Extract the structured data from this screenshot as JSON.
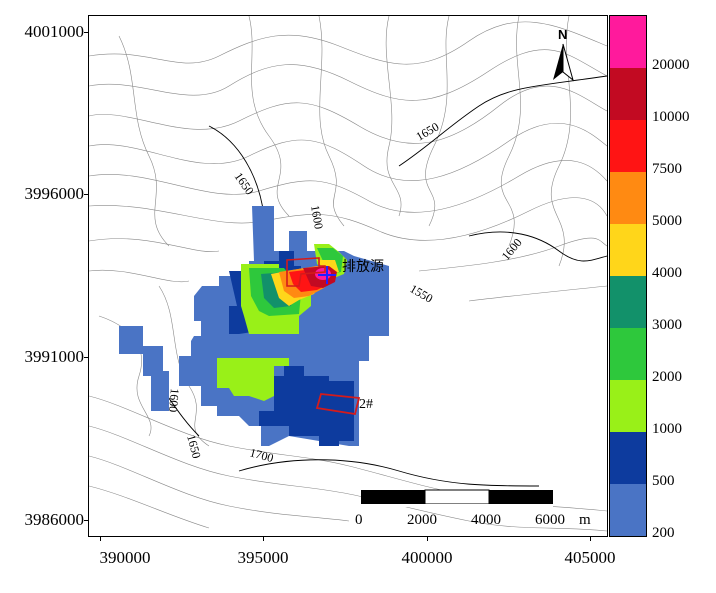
{
  "axes": {
    "y_ticks": [
      "4001000",
      "3996000",
      "3991000",
      "3986000"
    ],
    "x_ticks": [
      "390000",
      "395000",
      "400000",
      "405000"
    ]
  },
  "legend": {
    "levels": [
      {
        "label": "200",
        "color": "#4a74c5"
      },
      {
        "label": "500",
        "color": "#0d3b9e"
      },
      {
        "label": "1000",
        "color": "#99f018"
      },
      {
        "label": "2000",
        "color": "#2ec83c"
      },
      {
        "label": "3000",
        "color": "#12916a"
      },
      {
        "label": "4000",
        "color": "#ffd61a"
      },
      {
        "label": "5000",
        "color": "#ff8a12"
      },
      {
        "label": "7500",
        "color": "#ff1414"
      },
      {
        "label": "10000",
        "color": "#c20a22"
      },
      {
        "label": "20000",
        "color": "#ff1a9c"
      }
    ]
  },
  "contour_labels": {
    "c1650_nw": "1650",
    "c1650_ne": "1650",
    "c1600_top": "1600",
    "c1600_e": "1600",
    "c1550": "1550",
    "c1600_sw": "1600",
    "c1650_sw": "1650",
    "c1700": "1700"
  },
  "source": {
    "label": "排放源",
    "area_marker": "2#"
  },
  "north_arrow": {
    "label": "N"
  },
  "scale_bar": {
    "labels": [
      "0",
      "2000",
      "4000",
      "6000"
    ],
    "unit": "m"
  }
}
